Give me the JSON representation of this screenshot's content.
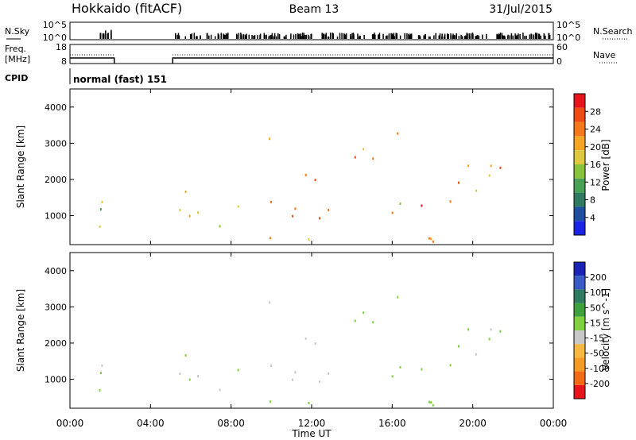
{
  "header": {
    "station": "Hokkaido (fitACF)",
    "beam": "Beam 13",
    "date": "31/Jul/2015"
  },
  "strip_panels": {
    "nsky": {
      "label": "N.Sky",
      "ticks": [
        "10^5",
        "10^0"
      ],
      "right_label": "N.Search",
      "right_ticks": [
        "10^5",
        "10^0"
      ]
    },
    "freq": {
      "label": "Freq.",
      "unit": "[MHz]",
      "ticks": [
        "18",
        "8"
      ],
      "right_label": "Nave",
      "right_ticks": [
        "60",
        "0"
      ]
    },
    "cpid": {
      "label": "CPID",
      "value": "normal (fast) 151"
    }
  },
  "axes": {
    "x_ticks": [
      "00:00",
      "04:00",
      "08:00",
      "12:00",
      "16:00",
      "20:00",
      "00:00"
    ],
    "x_label": "Time UT",
    "y_label": "Slant Range [km]",
    "y_ticks": [
      "4000",
      "3000",
      "2000",
      "1000"
    ]
  },
  "colorbars": {
    "power": {
      "label": "Power [dB]",
      "ticks": [
        "28",
        "24",
        "20",
        "16",
        "12",
        "8",
        "4"
      ],
      "colors": [
        "#e8141a",
        "#ee4a12",
        "#f5781a",
        "#f5a623",
        "#ddc840",
        "#86c23a",
        "#49a155",
        "#2e7b61",
        "#1f4fa0",
        "#1a23e6"
      ]
    },
    "velocity": {
      "label": "Velocity [m s^-1]",
      "ticks": [
        "200",
        "100",
        "50",
        "15",
        "-15",
        "-50",
        "-100",
        "-200"
      ],
      "colors": [
        "#1a23b5",
        "#3a5bc7",
        "#2e7b61",
        "#3fa13c",
        "#7fd13f",
        "#c8c8c8",
        "#f5b841",
        "#f59a23",
        "#f26a14",
        "#e8141a"
      ]
    }
  },
  "chart_data": {
    "type": "heatmap",
    "x_range_hours": [
      0,
      24
    ],
    "y_range_km": [
      200,
      4500
    ],
    "data_gap_hours": [
      2.2,
      5.1
    ],
    "power_range_db": [
      0,
      32
    ],
    "velocity_range_ms": [
      -250,
      250
    ],
    "echo_regions": [
      {
        "t0": 0.0,
        "t1": 2.2,
        "r0": 300,
        "r1": 1600,
        "power": 16,
        "velocity": -10
      },
      {
        "t0": 5.1,
        "t1": 8.0,
        "r0": 400,
        "r1": 2000,
        "power": 15,
        "velocity": -5
      },
      {
        "t0": 8.0,
        "t1": 10.0,
        "r0": 1000,
        "r1": 1800,
        "power": 20,
        "velocity": 0
      },
      {
        "t0": 9.0,
        "t1": 11.0,
        "r0": 2600,
        "r1": 3200,
        "power": 18,
        "velocity": 5
      },
      {
        "t0": 10.0,
        "t1": 14.0,
        "r0": 800,
        "r1": 2200,
        "power": 26,
        "velocity": 0
      },
      {
        "t0": 13.0,
        "t1": 15.5,
        "r0": 2000,
        "r1": 3200,
        "power": 24,
        "velocity": 10
      },
      {
        "t0": 15.5,
        "t1": 17.0,
        "r0": 2600,
        "r1": 3300,
        "power": 26,
        "velocity": 5
      },
      {
        "t0": 15.0,
        "t1": 16.5,
        "r0": 600,
        "r1": 1800,
        "power": 20,
        "velocity": 30
      },
      {
        "t0": 17.0,
        "t1": 18.5,
        "r0": 800,
        "r1": 1400,
        "power": 24,
        "velocity": 45
      },
      {
        "t0": 18.5,
        "t1": 22.5,
        "r0": 1000,
        "r1": 2600,
        "power": 24,
        "velocity": -5
      },
      {
        "t0": 5.1,
        "t1": 24.0,
        "r0": 250,
        "r1": 500,
        "power": 22,
        "velocity": 20
      }
    ]
  }
}
